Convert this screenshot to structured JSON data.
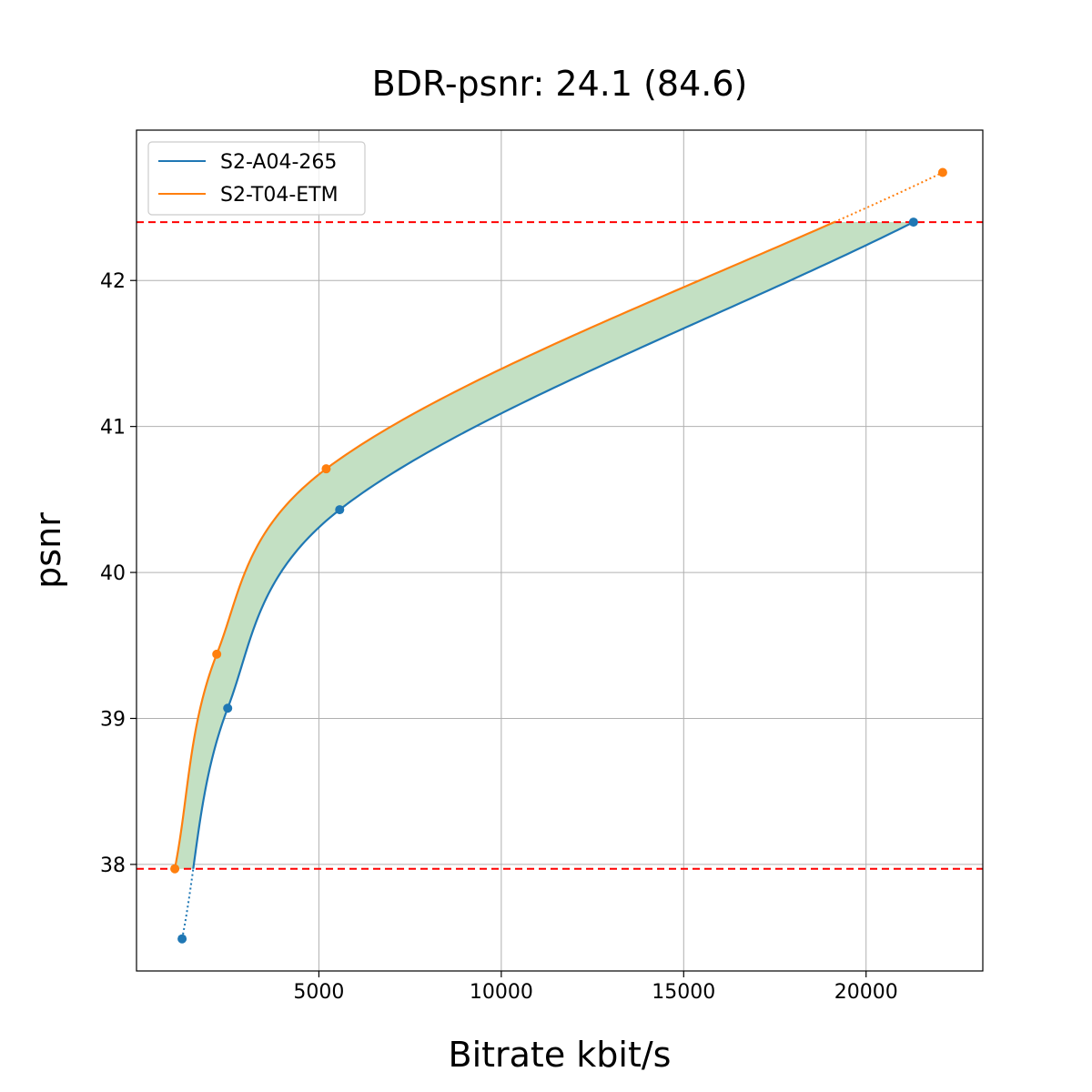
{
  "chart_data": {
    "type": "line",
    "title": "BDR-psnr: 24.1 (84.6)",
    "xlabel": "Bitrate kbit/s",
    "ylabel": "psnr",
    "xlim": [
      0,
      23200
    ],
    "ylim": [
      37.27,
      43.03
    ],
    "xticks": [
      5000,
      10000,
      15000,
      20000
    ],
    "yticks": [
      38,
      39,
      40,
      41,
      42
    ],
    "grid": true,
    "legend_position": "top-left",
    "series": [
      {
        "name": "S2-A04-265",
        "color": "#1f77b4",
        "points": [
          {
            "x": 1250,
            "y": 37.49
          },
          {
            "x": 2500,
            "y": 39.07
          },
          {
            "x": 5570,
            "y": 40.43
          },
          {
            "x": 21300,
            "y": 42.4
          }
        ]
      },
      {
        "name": "S2-T04-ETM",
        "color": "#ff7f0e",
        "points": [
          {
            "x": 1050,
            "y": 37.97
          },
          {
            "x": 2200,
            "y": 39.44
          },
          {
            "x": 5200,
            "y": 40.71
          },
          {
            "x": 22100,
            "y": 42.74
          }
        ]
      }
    ],
    "reference_lines": [
      {
        "axis": "y",
        "value": 42.4,
        "color": "#ff0000",
        "style": "dashed"
      },
      {
        "axis": "y",
        "value": 37.97,
        "color": "#ff0000",
        "style": "dashed"
      }
    ],
    "fill_between": {
      "color": "#c3e0c3",
      "y_from": 37.97,
      "y_to": 42.4
    }
  }
}
